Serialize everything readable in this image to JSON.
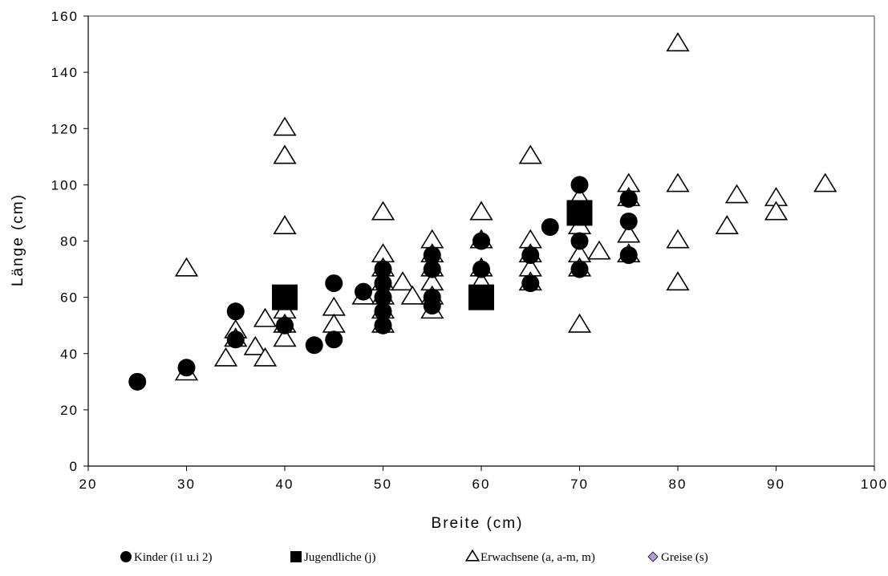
{
  "chart_data": {
    "type": "scatter",
    "title": "",
    "xlabel": "Breite (cm)",
    "ylabel": "Länge (cm)",
    "xlim": [
      20,
      100
    ],
    "ylim": [
      0,
      160
    ],
    "xticks": [
      "20",
      "30",
      "40",
      "50",
      "60",
      "70",
      "80",
      "90",
      "100"
    ],
    "yticks": [
      "0",
      "20",
      "40",
      "60",
      "80",
      "100",
      "120",
      "140",
      "160"
    ],
    "grid": false,
    "legend_position": "bottom",
    "series": [
      {
        "name": "Kinder (i1 u.i 2)",
        "marker": "circle",
        "color": "#000000",
        "points": [
          [
            25,
            30
          ],
          [
            30,
            35
          ],
          [
            35,
            55
          ],
          [
            35,
            45
          ],
          [
            40,
            50
          ],
          [
            43,
            43
          ],
          [
            45,
            65
          ],
          [
            45,
            45
          ],
          [
            48,
            62
          ],
          [
            50,
            70
          ],
          [
            50,
            65
          ],
          [
            50,
            60
          ],
          [
            50,
            55
          ],
          [
            50,
            50
          ],
          [
            55,
            75
          ],
          [
            55,
            70
          ],
          [
            55,
            60
          ],
          [
            55,
            57
          ],
          [
            60,
            80
          ],
          [
            60,
            70
          ],
          [
            65,
            75
          ],
          [
            65,
            65
          ],
          [
            67,
            85
          ],
          [
            70,
            100
          ],
          [
            70,
            80
          ],
          [
            70,
            70
          ],
          [
            75,
            95
          ],
          [
            75,
            87
          ],
          [
            75,
            75
          ]
        ]
      },
      {
        "name": "Jugendliche (j)",
        "marker": "square",
        "color": "#000000",
        "points": [
          [
            40,
            60
          ],
          [
            60,
            60
          ],
          [
            70,
            90
          ]
        ]
      },
      {
        "name": "Erwachsene (a, a-m, m)",
        "marker": "triangle",
        "color": "#000000",
        "points": [
          [
            30,
            70
          ],
          [
            30,
            33
          ],
          [
            34,
            38
          ],
          [
            35,
            48
          ],
          [
            35,
            45
          ],
          [
            37,
            42
          ],
          [
            38,
            52
          ],
          [
            38,
            38
          ],
          [
            40,
            120
          ],
          [
            40,
            110
          ],
          [
            40,
            85
          ],
          [
            40,
            55
          ],
          [
            40,
            50
          ],
          [
            40,
            45
          ],
          [
            45,
            56
          ],
          [
            45,
            50
          ],
          [
            48,
            60
          ],
          [
            50,
            90
          ],
          [
            50,
            75
          ],
          [
            50,
            70
          ],
          [
            50,
            65
          ],
          [
            50,
            60
          ],
          [
            50,
            55
          ],
          [
            50,
            50
          ],
          [
            52,
            65
          ],
          [
            53,
            60
          ],
          [
            55,
            80
          ],
          [
            55,
            75
          ],
          [
            55,
            70
          ],
          [
            55,
            65
          ],
          [
            55,
            60
          ],
          [
            55,
            55
          ],
          [
            60,
            90
          ],
          [
            60,
            80
          ],
          [
            60,
            70
          ],
          [
            60,
            65
          ],
          [
            65,
            110
          ],
          [
            65,
            80
          ],
          [
            65,
            75
          ],
          [
            65,
            70
          ],
          [
            65,
            65
          ],
          [
            70,
            95
          ],
          [
            70,
            85
          ],
          [
            70,
            75
          ],
          [
            70,
            70
          ],
          [
            70,
            50
          ],
          [
            72,
            76
          ],
          [
            75,
            100
          ],
          [
            75,
            95
          ],
          [
            75,
            82
          ],
          [
            75,
            75
          ],
          [
            80,
            150
          ],
          [
            80,
            100
          ],
          [
            80,
            80
          ],
          [
            80,
            65
          ],
          [
            85,
            85
          ],
          [
            86,
            96
          ],
          [
            90,
            95
          ],
          [
            90,
            90
          ],
          [
            95,
            100
          ]
        ]
      },
      {
        "name": "Greise (s)",
        "marker": "diamond",
        "color": "#b79ad6",
        "points": []
      }
    ]
  }
}
